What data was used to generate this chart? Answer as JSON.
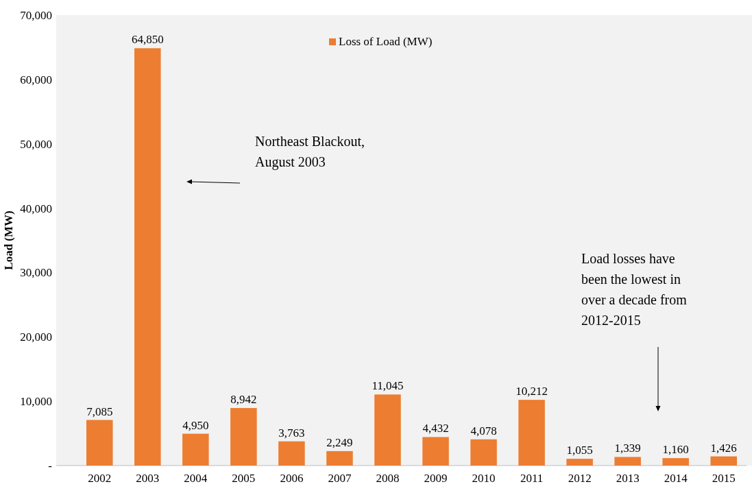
{
  "chart_data": {
    "type": "bar",
    "ylabel": "Load (MW)",
    "categories": [
      "2002",
      "2003",
      "2004",
      "2005",
      "2006",
      "2007",
      "2008",
      "2009",
      "2010",
      "2011",
      "2012",
      "2013",
      "2014",
      "2015"
    ],
    "series": [
      {
        "name": "Loss of Load (MW)",
        "color": "#ed7d31",
        "values": [
          7085,
          64850,
          4950,
          8942,
          3763,
          2249,
          11045,
          4432,
          4078,
          10212,
          1055,
          1339,
          1160,
          1426
        ],
        "value_labels": [
          "7,085",
          "64,850",
          "4,950",
          "8,942",
          "3,763",
          "2,249",
          "11,045",
          "4,432",
          "4,078",
          "10,212",
          "1,055",
          "1,339",
          "1,160",
          "1,426"
        ]
      }
    ],
    "ylim": [
      0,
      70000
    ],
    "yticks": [
      {
        "value": 0,
        "label": "-"
      },
      {
        "value": 10000,
        "label": "10,000"
      },
      {
        "value": 20000,
        "label": "20,000"
      },
      {
        "value": 30000,
        "label": "30,000"
      },
      {
        "value": 40000,
        "label": "40,000"
      },
      {
        "value": 50000,
        "label": "50,000"
      },
      {
        "value": 60000,
        "label": "60,000"
      },
      {
        "value": 70000,
        "label": "70,000"
      }
    ],
    "legend": "top",
    "grid": false,
    "annotations": [
      "Northeast Blackout,\nAugust 2003",
      "Load losses have\nbeen the lowest in\nover a decade from\n2012-2015"
    ]
  }
}
